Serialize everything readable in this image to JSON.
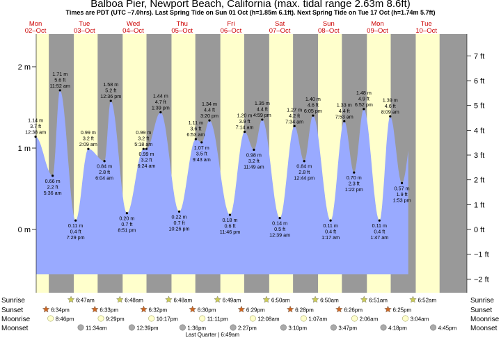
{
  "title": "Balboa Pier, Newport Beach, California (max. tidal range 2.63m 8.6ft)",
  "subtitle": "Times are PDT (UTC –7.0hrs). Last Spring Tide on Sun 01 Oct (h=1.85m 6.1ft). Next Spring Tide on Tue 17 Oct (h=1.74m 5.7ft)",
  "colors": {
    "day": "#ffffcc",
    "night": "#999999",
    "water": "#99aaff",
    "date_red": "#cc0000"
  },
  "days": [
    {
      "dow": "Mon",
      "date": "02–Oct"
    },
    {
      "dow": "Tue",
      "date": "03–Oct"
    },
    {
      "dow": "Wed",
      "date": "04–Oct"
    },
    {
      "dow": "Thu",
      "date": "05–Oct"
    },
    {
      "dow": "Fri",
      "date": "06–Oct"
    },
    {
      "dow": "Sat",
      "date": "07–Oct"
    },
    {
      "dow": "Sun",
      "date": "08–Oct"
    },
    {
      "dow": "Mon",
      "date": "09–Oct"
    },
    {
      "dow": "Tue",
      "date": "10–Oct"
    }
  ],
  "chart_data": {
    "type": "area",
    "title": "Balboa Pier, Newport Beach, California (max. tidal range 2.63m 8.6ft)",
    "y_left_unit": "m",
    "y_right_unit": "ft",
    "y_left_ticks": [
      {
        "v": 2,
        "label": "2 m"
      },
      {
        "v": 1,
        "label": "1 m"
      },
      {
        "v": 0,
        "label": "0 m"
      }
    ],
    "y_right_ticks": [
      "7 ft",
      "6 ft",
      "5 ft",
      "4 ft",
      "3 ft",
      "2 ft",
      "1 ft",
      "0 ft",
      "−1 ft",
      "−2 ft"
    ],
    "ylim_m": [
      -0.7,
      2.15
    ],
    "tides": [
      {
        "day": 0.5,
        "time": "12:38 am",
        "ft": "3.7 ft",
        "m": 1.14,
        "m_label": "1.14 m",
        "type": "high"
      },
      {
        "day": 0.85,
        "time": "5:36 am",
        "ft": "2.2 ft",
        "m": 0.66,
        "m_label": "0.66 m",
        "type": "low"
      },
      {
        "day": 1.0,
        "time": "11:52 am",
        "ft": "5.6 ft",
        "m": 1.71,
        "m_label": "1.71 m",
        "type": "high"
      },
      {
        "day": 1.32,
        "time": "7:29 pm",
        "ft": "0.4 ft",
        "m": 0.11,
        "m_label": "0.11 m",
        "type": "low"
      },
      {
        "day": 1.58,
        "time": "2:09 am",
        "ft": "3.2 ft",
        "m": 0.99,
        "m_label": "0.99 m",
        "type": "high"
      },
      {
        "day": 1.91,
        "time": "6:04 am",
        "ft": "2.8 ft",
        "m": 0.84,
        "m_label": "0.84 m",
        "type": "low"
      },
      {
        "day": 2.04,
        "time": "12:36 pm",
        "ft": "5.2 ft",
        "m": 1.58,
        "m_label": "1.58 m",
        "type": "high"
      },
      {
        "day": 2.37,
        "time": "8:51 pm",
        "ft": "0.7 ft",
        "m": 0.2,
        "m_label": "0.20 m",
        "type": "low"
      },
      {
        "day": 2.71,
        "time": "5:18 am",
        "ft": "3.2 ft",
        "m": 0.99,
        "m_label": "0.99 m",
        "type": "high"
      },
      {
        "day": 2.77,
        "time": "6:24 am",
        "ft": "3.2 ft",
        "m": 0.99,
        "m_label": "0.99 m",
        "type": "low"
      },
      {
        "day": 3.06,
        "time": "1:39 pm",
        "ft": "4.7 ft",
        "m": 1.44,
        "m_label": "1.44 m",
        "type": "high"
      },
      {
        "day": 3.44,
        "time": "10:26 pm",
        "ft": "0.7 ft",
        "m": 0.22,
        "m_label": "0.22 m",
        "type": "low"
      },
      {
        "day": 3.78,
        "time": "6:53 am",
        "ft": "3.6 ft",
        "m": 1.11,
        "m_label": "1.11 m",
        "type": "high"
      },
      {
        "day": 3.9,
        "time": "9:43 am",
        "ft": "3.5 ft",
        "m": 1.07,
        "m_label": "1.07 m",
        "type": "low"
      },
      {
        "day": 4.06,
        "time": "3:20 pm",
        "ft": "4.4 ft",
        "m": 1.34,
        "m_label": "1.34 m",
        "type": "high"
      },
      {
        "day": 4.48,
        "time": "11:46 pm",
        "ft": "0.6 ft",
        "m": 0.18,
        "m_label": "0.18 m",
        "type": "low"
      },
      {
        "day": 4.78,
        "time": "7:14 am",
        "ft": "3.9 ft",
        "m": 1.2,
        "m_label": "1.20 m",
        "type": "high"
      },
      {
        "day": 4.97,
        "time": "11:49 am",
        "ft": "3.2 ft",
        "m": 0.98,
        "m_label": "0.98 m",
        "type": "low"
      },
      {
        "day": 5.14,
        "time": "4:59 pm",
        "ft": "4.4 ft",
        "m": 1.35,
        "m_label": "1.35 m",
        "type": "high"
      },
      {
        "day": 5.5,
        "time": "12:39 am",
        "ft": "0.5 ft",
        "m": 0.14,
        "m_label": "0.14 m",
        "type": "low"
      },
      {
        "day": 5.8,
        "time": "7:34 am",
        "ft": "4.2 ft",
        "m": 1.27,
        "m_label": "1.27 m",
        "type": "high"
      },
      {
        "day": 6.0,
        "time": "12:44 pm",
        "ft": "2.8 ft",
        "m": 0.84,
        "m_label": "0.84 m",
        "type": "low"
      },
      {
        "day": 6.18,
        "time": "6:05 pm",
        "ft": "4.6 ft",
        "m": 1.4,
        "m_label": "1.40 m",
        "type": "high"
      },
      {
        "day": 6.54,
        "time": "1:17 am",
        "ft": "0.4 ft",
        "m": 0.11,
        "m_label": "0.11 m",
        "type": "low"
      },
      {
        "day": 6.82,
        "time": "7:53 am",
        "ft": "4.4 ft",
        "m": 1.33,
        "m_label": "1.33 m",
        "type": "high"
      },
      {
        "day": 7.02,
        "time": "1:22 pm",
        "ft": "2.3 ft",
        "m": 0.7,
        "m_label": "0.70 m",
        "type": "low"
      },
      {
        "day": 7.22,
        "time": "6:52 pm",
        "ft": "4.9 ft",
        "m": 1.48,
        "m_label": "1.48 m",
        "type": "high"
      },
      {
        "day": 7.54,
        "time": "1:47 am",
        "ft": "0.4 ft",
        "m": 0.11,
        "m_label": "0.11 m",
        "type": "low"
      },
      {
        "day": 7.76,
        "time": "8:09 am",
        "ft": "4.6 ft",
        "m": 1.39,
        "m_label": "1.39 m",
        "type": "high"
      },
      {
        "day": 8.0,
        "time": "1:53 pm",
        "ft": "1.9 ft",
        "m": 0.57,
        "m_label": "0.57 m",
        "type": "low"
      }
    ]
  },
  "astro_labels": [
    "Sunrise",
    "Sunset",
    "Moonrise",
    "Moonset"
  ],
  "sunrise": [
    "6:47am",
    "6:48am",
    "6:48am",
    "6:49am",
    "6:50am",
    "6:50am",
    "6:51am",
    "6:52am"
  ],
  "sunset": [
    "6:34pm",
    "6:33pm",
    "6:32pm",
    "6:30pm",
    "6:29pm",
    "6:28pm",
    "6:26pm",
    "6:25pm"
  ],
  "moonrise": [
    "8:46pm",
    "9:29pm",
    "10:17pm",
    "11:11pm",
    "12:08am",
    "1:07am",
    "2:06am",
    "3:04am"
  ],
  "moonset": [
    "11:34am",
    "12:39pm",
    "1:36pm",
    "2:27pm",
    "3:10pm",
    "3:47pm",
    "4:18pm",
    "4:45pm"
  ],
  "moon_phase": "Last Quarter | 6:49am"
}
